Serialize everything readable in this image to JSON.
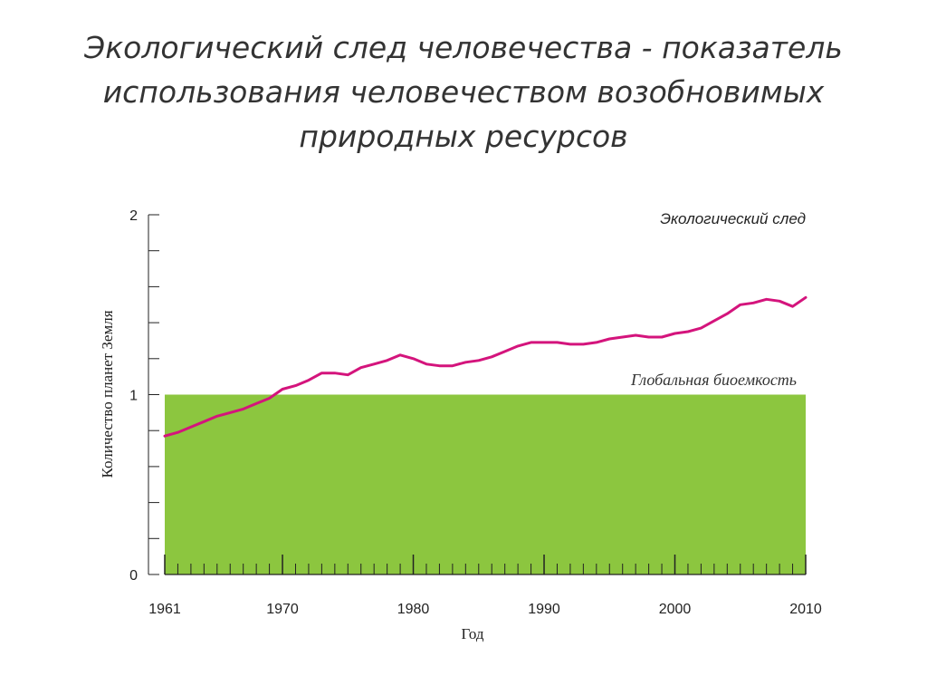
{
  "slide": {
    "title_lines": [
      "Экологический след человечества - показатель",
      "использования человечеством возобновимых",
      "природных ресурсов"
    ]
  },
  "colors": {
    "footprint_line": "#d4147c",
    "biocapacity_fill": "#8cc63f",
    "axis": "#222222"
  },
  "chart_data": {
    "type": "line",
    "xlabel": "Год",
    "ylabel": "Количество планет Земля",
    "xlim": [
      1961,
      2010
    ],
    "ylim": [
      0,
      2
    ],
    "x_tick_labels": [
      1961,
      1970,
      1980,
      1990,
      2000,
      2010
    ],
    "y_tick_labels": [
      0,
      1,
      2
    ],
    "y_minor_step": 0.2,
    "series": [
      {
        "name": "Экологический след",
        "x": [
          1961,
          1962,
          1963,
          1964,
          1965,
          1966,
          1967,
          1968,
          1969,
          1970,
          1971,
          1972,
          1973,
          1974,
          1975,
          1976,
          1977,
          1978,
          1979,
          1980,
          1981,
          1982,
          1983,
          1984,
          1985,
          1986,
          1987,
          1988,
          1989,
          1990,
          1991,
          1992,
          1993,
          1994,
          1995,
          1996,
          1997,
          1998,
          1999,
          2000,
          2001,
          2002,
          2003,
          2004,
          2005,
          2006,
          2007,
          2008,
          2009,
          2010
        ],
        "y": [
          0.77,
          0.79,
          0.82,
          0.85,
          0.88,
          0.9,
          0.92,
          0.95,
          0.98,
          1.03,
          1.05,
          1.08,
          1.12,
          1.12,
          1.11,
          1.15,
          1.17,
          1.19,
          1.22,
          1.2,
          1.17,
          1.16,
          1.16,
          1.18,
          1.19,
          1.21,
          1.24,
          1.27,
          1.29,
          1.29,
          1.29,
          1.28,
          1.28,
          1.29,
          1.31,
          1.32,
          1.33,
          1.32,
          1.32,
          1.34,
          1.35,
          1.37,
          1.41,
          1.45,
          1.5,
          1.51,
          1.53,
          1.52,
          1.49,
          1.54
        ]
      }
    ],
    "band": {
      "name": "Глобальная биоемкость",
      "value": 1
    }
  }
}
